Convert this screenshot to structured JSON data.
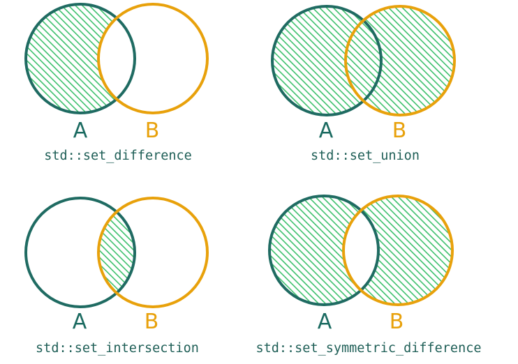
{
  "colors": {
    "set_a": "#1f6b62",
    "set_b": "#e8a10b",
    "hatch": "#3cc06c",
    "caption": "#1f5f57"
  },
  "panels": [
    {
      "operation": "set_difference",
      "label_a": "A",
      "label_b": "B",
      "caption": "std::set_difference"
    },
    {
      "operation": "set_union",
      "label_a": "A",
      "label_b": "B",
      "caption": "std::set_union"
    },
    {
      "operation": "set_intersection",
      "label_a": "A",
      "label_b": "B",
      "caption": "std::set_intersection"
    },
    {
      "operation": "set_symmetric_difference",
      "label_a": "A",
      "label_b": "B",
      "caption": "std::set_symmetric_difference"
    }
  ]
}
